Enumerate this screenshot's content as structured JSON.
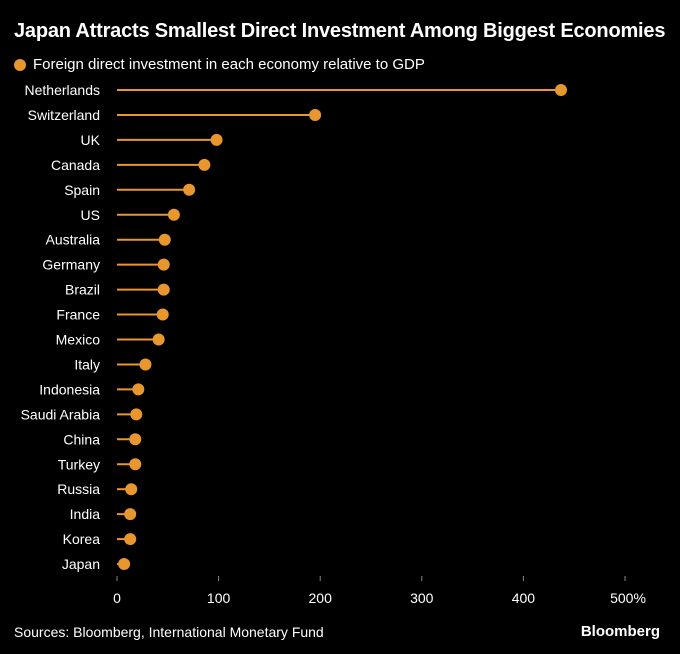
{
  "chart_data": {
    "type": "lollipop",
    "title": "Japan Attracts Smallest Direct Investment Among Biggest Economies",
    "legend": "Foreign direct investment in each economy relative to GDP",
    "categories": [
      "Netherlands",
      "Switzerland",
      "UK",
      "Canada",
      "Spain",
      "US",
      "Australia",
      "Germany",
      "Brazil",
      "France",
      "Mexico",
      "Italy",
      "Indonesia",
      "Saudi Arabia",
      "China",
      "Turkey",
      "Russia",
      "India",
      "Korea",
      "Japan"
    ],
    "values": [
      437,
      195,
      98,
      86,
      71,
      56,
      47,
      46,
      46,
      45,
      41,
      28,
      21,
      19,
      18,
      18,
      14,
      13,
      13,
      7
    ],
    "xlim": [
      0,
      500
    ],
    "xticks": [
      0,
      100,
      200,
      300,
      400,
      500
    ],
    "xtick_labels": [
      "0",
      "100",
      "200",
      "300",
      "400",
      "500%"
    ],
    "color": "#e8962e",
    "grid": false
  },
  "footer": {
    "source": "Sources: Bloomberg, International Monetary Fund",
    "brand": "Bloomberg"
  }
}
